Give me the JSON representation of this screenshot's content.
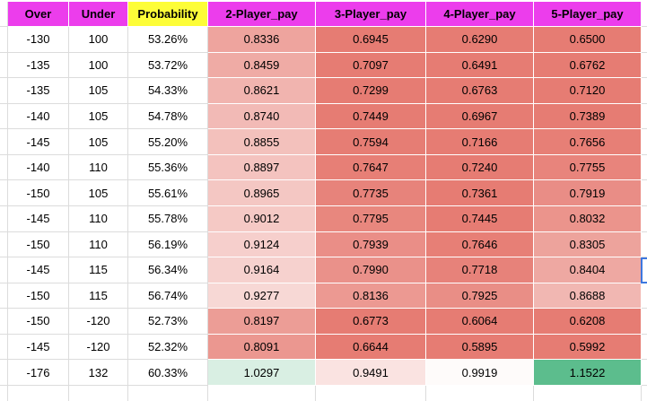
{
  "header": {
    "columns": [
      {
        "label": "Over",
        "bg": "#EC3DEC"
      },
      {
        "label": "Under",
        "bg": "#EC3DEC"
      },
      {
        "label": "Probability",
        "bg": "#FDFD38"
      },
      {
        "label": "2-Player_pay",
        "bg": "#EC3DEC"
      },
      {
        "label": "3-Player_pay",
        "bg": "#EC3DEC"
      },
      {
        "label": "4-Player_pay",
        "bg": "#EC3DEC"
      },
      {
        "label": "5-Player_pay",
        "bg": "#EC3DEC"
      }
    ]
  },
  "rows": [
    {
      "over": "-130",
      "under": "100",
      "probability": "53.26%",
      "pays": [
        {
          "value": "0.8336",
          "bg": "#EEA49E"
        },
        {
          "value": "0.6945",
          "bg": "#E67C73"
        },
        {
          "value": "0.6290",
          "bg": "#E67C73"
        },
        {
          "value": "0.6500",
          "bg": "#E67C73"
        }
      ]
    },
    {
      "over": "-135",
      "under": "100",
      "probability": "53.72%",
      "pays": [
        {
          "value": "0.8459",
          "bg": "#EFABA5"
        },
        {
          "value": "0.7097",
          "bg": "#E67C73"
        },
        {
          "value": "0.6491",
          "bg": "#E67C73"
        },
        {
          "value": "0.6762",
          "bg": "#E67C73"
        }
      ]
    },
    {
      "over": "-135",
      "under": "105",
      "probability": "54.33%",
      "pays": [
        {
          "value": "0.8621",
          "bg": "#F1B4AF"
        },
        {
          "value": "0.7299",
          "bg": "#E67C73"
        },
        {
          "value": "0.6763",
          "bg": "#E67C73"
        },
        {
          "value": "0.7120",
          "bg": "#E67C73"
        }
      ]
    },
    {
      "over": "-140",
      "under": "105",
      "probability": "54.78%",
      "pays": [
        {
          "value": "0.8740",
          "bg": "#F2BAB6"
        },
        {
          "value": "0.7449",
          "bg": "#E67C73"
        },
        {
          "value": "0.6967",
          "bg": "#E67C73"
        },
        {
          "value": "0.7389",
          "bg": "#E67C73"
        }
      ]
    },
    {
      "over": "-145",
      "under": "105",
      "probability": "55.20%",
      "pays": [
        {
          "value": "0.8855",
          "bg": "#F3C1BC"
        },
        {
          "value": "0.7594",
          "bg": "#E67D74"
        },
        {
          "value": "0.7166",
          "bg": "#E67C73"
        },
        {
          "value": "0.7656",
          "bg": "#E77F76"
        }
      ]
    },
    {
      "over": "-140",
      "under": "110",
      "probability": "55.36%",
      "pays": [
        {
          "value": "0.8897",
          "bg": "#F4C3BF"
        },
        {
          "value": "0.7647",
          "bg": "#E77F76"
        },
        {
          "value": "0.7240",
          "bg": "#E67C73"
        },
        {
          "value": "0.7755",
          "bg": "#E8847C"
        }
      ]
    },
    {
      "over": "-150",
      "under": "105",
      "probability": "55.61%",
      "pays": [
        {
          "value": "0.8965",
          "bg": "#F4C7C3"
        },
        {
          "value": "0.7735",
          "bg": "#E7837B"
        },
        {
          "value": "0.7361",
          "bg": "#E67C73"
        },
        {
          "value": "0.7919",
          "bg": "#E98D86"
        }
      ]
    },
    {
      "over": "-145",
      "under": "110",
      "probability": "55.78%",
      "pays": [
        {
          "value": "0.9012",
          "bg": "#F5C9C5"
        },
        {
          "value": "0.7795",
          "bg": "#E8877E"
        },
        {
          "value": "0.7445",
          "bg": "#E67C73"
        },
        {
          "value": "0.8032",
          "bg": "#EB948C"
        }
      ]
    },
    {
      "over": "-150",
      "under": "110",
      "probability": "56.19%",
      "pays": [
        {
          "value": "0.9124",
          "bg": "#F6CFCC"
        },
        {
          "value": "0.7939",
          "bg": "#EA8E87"
        },
        {
          "value": "0.7646",
          "bg": "#E77F76"
        },
        {
          "value": "0.8305",
          "bg": "#EDA39C"
        }
      ]
    },
    {
      "over": "-145",
      "under": "115",
      "probability": "56.34%",
      "pays": [
        {
          "value": "0.9164",
          "bg": "#F6D1CE"
        },
        {
          "value": "0.7990",
          "bg": "#EA918A"
        },
        {
          "value": "0.7718",
          "bg": "#E7827A"
        },
        {
          "value": "0.8404",
          "bg": "#EEA8A2"
        }
      ]
    },
    {
      "over": "-150",
      "under": "115",
      "probability": "56.74%",
      "pays": [
        {
          "value": "0.9277",
          "bg": "#F7D8D5"
        },
        {
          "value": "0.8136",
          "bg": "#EC9992"
        },
        {
          "value": "0.7925",
          "bg": "#E98E86"
        },
        {
          "value": "0.8688",
          "bg": "#F1B7B2"
        }
      ]
    },
    {
      "over": "-150",
      "under": "-120",
      "probability": "52.73%",
      "pays": [
        {
          "value": "0.8197",
          "bg": "#EC9D96"
        },
        {
          "value": "0.6773",
          "bg": "#E67C73"
        },
        {
          "value": "0.6064",
          "bg": "#E67C73"
        },
        {
          "value": "0.6208",
          "bg": "#E67C73"
        }
      ]
    },
    {
      "over": "-145",
      "under": "-120",
      "probability": "52.32%",
      "pays": [
        {
          "value": "0.8091",
          "bg": "#EB9790"
        },
        {
          "value": "0.6644",
          "bg": "#E67C73"
        },
        {
          "value": "0.5895",
          "bg": "#E67C73"
        },
        {
          "value": "0.5992",
          "bg": "#E67C73"
        }
      ]
    },
    {
      "over": "-176",
      "under": "132",
      "probability": "60.33%",
      "pays": [
        {
          "value": "1.0297",
          "bg": "#D9EFE3"
        },
        {
          "value": "0.9491",
          "bg": "#FAE3E1"
        },
        {
          "value": "0.9919",
          "bg": "#FEFBFA"
        },
        {
          "value": "1.1522",
          "bg": "#5CBD8D"
        }
      ]
    }
  ],
  "selection": {
    "border_color": "#3D78E0"
  },
  "colors": {
    "grid_line": "#DCDCDC",
    "header_magenta": "#EC3DEC",
    "header_yellow": "#FDFD38",
    "scale_red": "#E67C73",
    "scale_white": "#FFFFFF",
    "scale_green": "#57BB8A",
    "text": "#000000"
  }
}
